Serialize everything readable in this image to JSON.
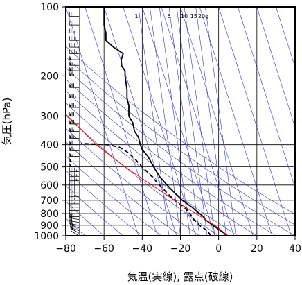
{
  "chart_data": {
    "type": "line",
    "title": "",
    "xlabel": "気温(実線), 露点(破線)",
    "ylabel": "気圧(hPa)",
    "xlim": [
      -80,
      40
    ],
    "ylim": [
      1000,
      100
    ],
    "y_scale": "log",
    "x_ticks": [
      "−80",
      "−60",
      "−40",
      "−20",
      "0",
      "20",
      "40"
    ],
    "x_tick_values": [
      -80,
      -60,
      -40,
      -20,
      0,
      20,
      40
    ],
    "y_ticks": [
      "100",
      "200",
      "300",
      "400",
      "500",
      "600",
      "700",
      "800",
      "900",
      "1000"
    ],
    "y_tick_values": [
      100,
      200,
      300,
      400,
      500,
      600,
      700,
      800,
      900,
      1000
    ],
    "mixing_ratio_labels": [
      "1",
      "5",
      "10",
      "15",
      "20g"
    ],
    "grid": true,
    "series": [
      {
        "kind": "temperature",
        "style": "solid",
        "color": "#000000",
        "p": [
          1000,
          975,
          950,
          925,
          900,
          875,
          850,
          825,
          800,
          775,
          750,
          700,
          650,
          600,
          550,
          500,
          450,
          420,
          400,
          370,
          350,
          320,
          300,
          270,
          250,
          230,
          200,
          190,
          180,
          170,
          160,
          150,
          140,
          130,
          120,
          110,
          100
        ],
        "t": [
          4,
          3,
          1,
          -1,
          -3,
          -5,
          -7,
          -8,
          -10,
          -12,
          -14,
          -19,
          -23,
          -27,
          -31,
          -34,
          -37,
          -40,
          -41,
          -42,
          -44,
          -45,
          -47,
          -47,
          -48,
          -48,
          -49,
          -49,
          -51,
          -51,
          -50,
          -55,
          -59,
          -59,
          -60,
          -60,
          -60
        ]
      },
      {
        "kind": "dewpoint",
        "style": "dashed",
        "color": "#000000",
        "p": [
          1000,
          975,
          950,
          925,
          900,
          850,
          800,
          750,
          700,
          650,
          600,
          550,
          500,
          460,
          430,
          410,
          400,
          395
        ],
        "t": [
          -4,
          -5,
          -6,
          -8,
          -10,
          -13,
          -15,
          -18,
          -23,
          -27,
          -31,
          -35,
          -40,
          -44,
          -48,
          -52,
          -58,
          -72
        ]
      },
      {
        "kind": "lifted-parcel",
        "style": "solid",
        "color": "#ff0000",
        "p": [
          1000,
          900,
          800,
          700,
          600,
          500,
          400,
          300,
          270
        ],
        "t": [
          5,
          -2,
          -12,
          -23,
          -35,
          -49,
          -64,
          -79,
          -85
        ]
      }
    ],
    "wind_barbs": {
      "x_axis_value": -73,
      "p": [
        1000,
        975,
        950,
        925,
        900,
        875,
        850,
        825,
        800,
        775,
        750,
        725,
        700,
        675,
        650,
        625,
        600,
        575,
        550,
        525,
        500,
        475,
        450,
        425,
        400,
        375,
        350,
        325,
        300,
        275,
        250,
        225,
        200,
        190,
        180,
        170,
        160,
        150,
        140,
        130,
        120,
        110,
        100
      ],
      "direction_deg": [
        300,
        300,
        290,
        290,
        280,
        280,
        280,
        270,
        270,
        270,
        270,
        270,
        270,
        270,
        270,
        270,
        270,
        270,
        270,
        270,
        270,
        270,
        270,
        270,
        270,
        270,
        270,
        270,
        270,
        270,
        270,
        270,
        270,
        270,
        270,
        270,
        270,
        270,
        270,
        270,
        270,
        270,
        270
      ],
      "speed_kt": [
        10,
        15,
        15,
        20,
        20,
        20,
        25,
        25,
        30,
        30,
        30,
        35,
        35,
        35,
        40,
        40,
        40,
        45,
        45,
        45,
        50,
        50,
        55,
        60,
        60,
        65,
        65,
        70,
        70,
        75,
        75,
        70,
        65,
        60,
        55,
        50,
        45,
        40,
        40,
        35,
        30,
        25,
        25
      ]
    },
    "colors": {
      "frame": "#000000",
      "grid": "#000000",
      "isotherm": "#3333cc",
      "adiabat": "#3333cc",
      "mixing_ratio": "#3333cc",
      "temperature": "#000000",
      "dewpoint": "#000000",
      "parcel": "#ff0000",
      "barb": "#000000"
    }
  }
}
